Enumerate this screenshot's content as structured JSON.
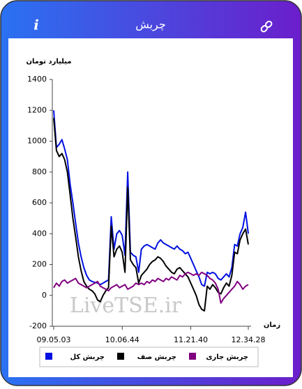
{
  "header": {
    "title": "چربش",
    "info": "i"
  },
  "watermark": "LiveTSE.ir",
  "chart_data": {
    "type": "line",
    "y_label": "میلیارد تومان",
    "x_label": "زمان",
    "categories": [
      "09.05.03",
      null,
      null,
      null,
      null,
      null,
      null,
      null,
      null,
      null,
      null,
      null,
      null,
      null,
      null,
      null,
      null,
      null,
      null,
      null,
      null,
      null,
      null,
      null,
      null,
      "10.06.44",
      null,
      null,
      null,
      null,
      null,
      null,
      null,
      null,
      null,
      null,
      null,
      null,
      null,
      null,
      null,
      null,
      null,
      null,
      null,
      null,
      null,
      null,
      null,
      null,
      "11.21.40",
      null,
      null,
      null,
      null,
      null,
      null,
      null,
      null,
      null,
      null,
      null,
      null,
      null,
      null,
      null,
      null,
      null,
      null,
      null,
      null,
      "12.34.28"
    ],
    "series": [
      {
        "name": "چربش کل",
        "color": "#0010e0",
        "values": [
          1200,
          960,
          980,
          1010,
          950,
          880,
          720,
          600,
          470,
          340,
          250,
          180,
          130,
          100,
          90,
          85,
          80,
          70,
          80,
          90,
          100,
          510,
          300,
          400,
          420,
          390,
          260,
          800,
          280,
          260,
          250,
          150,
          300,
          320,
          330,
          320,
          310,
          300,
          340,
          360,
          340,
          330,
          320,
          310,
          300,
          320,
          300,
          290,
          270,
          280,
          240,
          200,
          160,
          120,
          70,
          60,
          150,
          140,
          150,
          140,
          110,
          100,
          120,
          140,
          120,
          180,
          330,
          320,
          400,
          440,
          540,
          400
        ]
      },
      {
        "name": "چربش صف",
        "color": "#000000",
        "values": [
          1150,
          940,
          900,
          920,
          880,
          800,
          650,
          500,
          380,
          250,
          160,
          90,
          60,
          40,
          30,
          10,
          -30,
          -40,
          0,
          30,
          50,
          450,
          250,
          300,
          320,
          280,
          150,
          700,
          230,
          200,
          180,
          80,
          130,
          150,
          170,
          200,
          220,
          230,
          250,
          240,
          220,
          190,
          170,
          150,
          140,
          170,
          180,
          160,
          140,
          120,
          80,
          40,
          0,
          -60,
          -90,
          -100,
          60,
          40,
          70,
          50,
          20,
          10,
          50,
          80,
          60,
          130,
          280,
          270,
          360,
          400,
          430,
          330
        ]
      },
      {
        "name": "چربش جاری",
        "color": "#800080",
        "values": [
          50,
          80,
          60,
          90,
          100,
          80,
          90,
          100,
          110,
          80,
          70,
          60,
          50,
          60,
          70,
          80,
          90,
          60,
          50,
          40,
          30,
          50,
          60,
          70,
          50,
          60,
          70,
          40,
          50,
          60,
          80,
          70,
          80,
          70,
          90,
          80,
          100,
          90,
          110,
          100,
          90,
          110,
          100,
          120,
          110,
          100,
          130,
          120,
          140,
          150,
          140,
          130,
          140,
          130,
          150,
          140,
          130,
          110,
          100,
          80,
          40,
          -50,
          -20,
          0,
          20,
          40,
          60,
          90,
          70,
          40,
          60,
          70
        ]
      }
    ],
    "ylim": [
      -200,
      1400
    ],
    "yticks": [
      -200,
      0,
      200,
      400,
      600,
      800,
      1000,
      1200,
      1400
    ],
    "grid": false
  }
}
